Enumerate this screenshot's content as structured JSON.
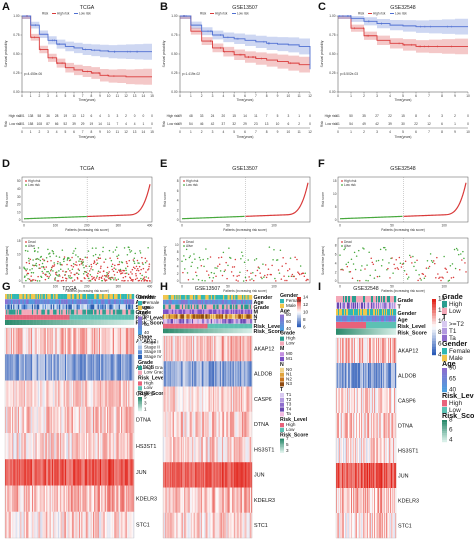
{
  "panel_letters": [
    "A",
    "B",
    "C",
    "D",
    "E",
    "F",
    "G",
    "H",
    "I"
  ],
  "colors": {
    "high": "#d93a3a",
    "low": "#4f6fd1",
    "alive": "#47a83d",
    "dead": "#d93a3a",
    "hm_hi": "#e2231a",
    "hm_mid": "#ffffff",
    "hm_lo": "#2b5bb8"
  },
  "km_legend": {
    "title": "Risk",
    "high": "High risk",
    "low": "Low risk"
  },
  "km_ylabel": "Survival probability",
  "km_xlabel": "Time(years)",
  "risk_table_label": "Risk",
  "rs_legend": {
    "high": "High risk",
    "low": "Low risk"
  },
  "st_legend": {
    "dead": "Dead",
    "alive": "Alive"
  },
  "rs_xlabel": "Patients (increasing risk score)",
  "panels_km": [
    {
      "title": "TCGA",
      "pvalue": "p=4.450e-06",
      "xticks": [
        "0",
        "1",
        "2",
        "3",
        "4",
        "5",
        "6",
        "7",
        "8",
        "9",
        "10",
        "11",
        "12",
        "13",
        "14",
        "15"
      ],
      "high": [
        "201",
        "138",
        "58",
        "36",
        "28",
        "19",
        "13",
        "12",
        "6",
        "4",
        "3",
        "3",
        "2",
        "0",
        "0",
        "0"
      ],
      "low": [
        "201",
        "158",
        "108",
        "87",
        "66",
        "52",
        "39",
        "29",
        "19",
        "14",
        "11",
        "7",
        "4",
        "4",
        "1",
        "0"
      ],
      "chart_data": {
        "type": "line",
        "x": [
          0,
          1,
          2,
          3,
          4,
          5,
          6,
          7,
          8,
          9,
          10,
          11,
          12,
          13,
          14,
          15
        ],
        "series": [
          {
            "name": "High risk",
            "values": [
              1.0,
              0.72,
              0.56,
              0.45,
              0.38,
              0.32,
              0.29,
              0.27,
              0.25,
              0.22,
              0.21,
              0.21,
              0.2,
              0.2,
              0.2,
              0.2
            ]
          },
          {
            "name": "Low risk",
            "values": [
              1.0,
              0.88,
              0.76,
              0.68,
              0.63,
              0.6,
              0.58,
              0.56,
              0.55,
              0.54,
              0.53,
              0.53,
              0.53,
              0.53,
              0.53,
              0.53
            ]
          }
        ],
        "ylim": [
          0,
          1
        ],
        "xlim": [
          0,
          15
        ]
      }
    },
    {
      "title": "GSE13507",
      "pvalue": "p=1.419e-02",
      "xticks": [
        "0",
        "1",
        "2",
        "3",
        "4",
        "5",
        "6",
        "7",
        "8",
        "9",
        "10",
        "11",
        "12"
      ],
      "high": [
        "69",
        "48",
        "33",
        "24",
        "20",
        "15",
        "14",
        "11",
        "7",
        "5",
        "3",
        "1",
        "0"
      ],
      "low": [
        "69",
        "54",
        "46",
        "42",
        "37",
        "32",
        "29",
        "23",
        "13",
        "10",
        "6",
        "2",
        "0"
      ],
      "chart_data": {
        "type": "line",
        "x": [
          0,
          1,
          2,
          3,
          4,
          5,
          6,
          7,
          8,
          9,
          10,
          11,
          12
        ],
        "series": [
          {
            "name": "High risk",
            "values": [
              1.0,
              0.8,
              0.67,
              0.58,
              0.53,
              0.49,
              0.46,
              0.44,
              0.42,
              0.4,
              0.38,
              0.36,
              0.36
            ]
          },
          {
            "name": "Low risk",
            "values": [
              1.0,
              0.88,
              0.8,
              0.75,
              0.72,
              0.7,
              0.68,
              0.66,
              0.64,
              0.63,
              0.62,
              0.6,
              0.3
            ]
          }
        ],
        "ylim": [
          0,
          1
        ],
        "xlim": [
          0,
          12
        ]
      }
    },
    {
      "title": "GSE32548",
      "pvalue": "p=5.502e-03",
      "xticks": [
        "0",
        "1",
        "2",
        "3",
        "4",
        "5",
        "6",
        "7",
        "8",
        "9",
        "10"
      ],
      "high": [
        "61",
        "50",
        "35",
        "27",
        "22",
        "15",
        "8",
        "4",
        "3",
        "2",
        "0"
      ],
      "low": [
        "61",
        "54",
        "49",
        "42",
        "39",
        "30",
        "22",
        "12",
        "6",
        "1",
        "0"
      ],
      "chart_data": {
        "type": "line",
        "x": [
          0,
          1,
          2,
          3,
          4,
          5,
          6,
          7,
          8,
          9,
          10
        ],
        "series": [
          {
            "name": "High risk",
            "values": [
              1.0,
              0.84,
              0.74,
              0.68,
              0.64,
              0.62,
              0.6,
              0.6,
              0.6,
              0.6,
              0.6
            ]
          },
          {
            "name": "Low risk",
            "values": [
              1.0,
              0.97,
              0.93,
              0.9,
              0.88,
              0.87,
              0.86,
              0.86,
              0.86,
              0.86,
              0.86
            ]
          }
        ],
        "ylim": [
          0,
          1
        ],
        "xlim": [
          0,
          10
        ]
      }
    }
  ],
  "panels_rs": [
    {
      "title": "TCGA",
      "ylabel": "Risk score",
      "yticks": [
        "0",
        "10",
        "20",
        "30",
        "40",
        "50"
      ],
      "xticks": [
        "0",
        "100",
        "200",
        "300",
        "400"
      ],
      "n": 402,
      "ymax": 50,
      "curve_max": 48,
      "st_ylabel": "Survival time (years)",
      "st_yticks": [
        "0",
        "5",
        "10",
        "15"
      ],
      "st_ymax": 15
    },
    {
      "title": "GSE13507",
      "ylabel": "Risk score",
      "yticks": [
        "0",
        "2",
        "4",
        "6",
        "8"
      ],
      "xticks": [
        "0",
        "50",
        "100"
      ],
      "n": 138,
      "ymax": 8,
      "curve_max": 8,
      "st_ylabel": "Survival time (years)",
      "st_yticks": [
        "0",
        "2",
        "4",
        "6",
        "8",
        "10"
      ],
      "st_ymax": 11
    },
    {
      "title": "GSE32548",
      "ylabel": "Risk score",
      "yticks": [
        "0",
        "5",
        "10",
        "15"
      ],
      "xticks": [
        "0",
        "50",
        "100"
      ],
      "n": 122,
      "ymax": 15,
      "curve_max": 15,
      "st_ylabel": "Survival time (years)",
      "st_yticks": [
        "0",
        "2",
        "4",
        "6",
        "8"
      ],
      "st_ymax": 9
    }
  ],
  "heatmap_titles": [
    "TCGA",
    "GSE13507",
    "GSE32548"
  ],
  "heatmap_genes": [
    [
      "AKAP12",
      "ALDOB",
      "CASP6",
      "DTNA",
      "HS3ST1",
      "JUN",
      "KDELR3",
      "STC1"
    ],
    [
      "AKAP12",
      "ALDOB",
      "CASP6",
      "DTNA",
      "HS3ST1",
      "JUN",
      "KDELR3",
      "STC1"
    ],
    [
      "AKAP12",
      "ALDOB",
      "CASP6",
      "DTNA",
      "HS3ST1",
      "JUN",
      "KDELR3",
      "STC1"
    ]
  ],
  "heatmap_annot": [
    [
      "Gender",
      "Age",
      "Stage",
      "Grade",
      "Risk_Level",
      "Risk_Score"
    ],
    [
      "Gender",
      "Age",
      "Grade",
      "M",
      "N",
      "T",
      "Risk_Level",
      "Risk_Score"
    ],
    [
      "Grade",
      "T",
      "Gender",
      "Age",
      "Risk_Level",
      "Risk_Score"
    ]
  ],
  "heatmap_G_legends": {
    "gender": {
      "title": "Gender",
      "items": [
        "Female",
        "Male"
      ]
    },
    "age": {
      "title": "Age",
      "ticks": [
        "80",
        "60",
        "40"
      ]
    },
    "stage": {
      "title": "Stage",
      "items": [
        "Stage I",
        "Stage II",
        "Stage III",
        "Stage IV"
      ]
    },
    "grade": {
      "title": "Grade",
      "items": [
        "High Grade",
        "Low Grade"
      ]
    },
    "risk": {
      "title": "Risk_Level",
      "items": [
        "High",
        "Low"
      ]
    },
    "score": {
      "title": "Risk_Score",
      "ticks": [
        "5",
        "3",
        "1"
      ]
    }
  },
  "heatmap_H_legends": {
    "scale": [
      "14",
      "12",
      "10",
      "8",
      "6"
    ],
    "gender": {
      "title": "Gender",
      "items": [
        "Female",
        "Male"
      ]
    },
    "age": {
      "title": "Age",
      "ticks": [
        "80",
        "60",
        "40"
      ]
    },
    "grade": {
      "title": "Grade",
      "items": [
        "High",
        "Low"
      ]
    },
    "m": {
      "title": "M",
      "items": [
        "M0",
        "M1"
      ]
    },
    "n": {
      "title": "N",
      "items": [
        "N0",
        "N1",
        "N2",
        "N3"
      ]
    },
    "t": {
      "title": "T",
      "items": [
        "T1",
        "T2",
        "T3",
        "T4",
        "Ta"
      ]
    },
    "risk": {
      "title": "Risk_Level",
      "items": [
        "High",
        "Low"
      ]
    },
    "score": {
      "title": "Risk_Score",
      "ticks": [
        "7",
        "5",
        "3"
      ]
    }
  },
  "heatmap_I_legends": {
    "scale": [
      "14",
      "12",
      "10",
      "8",
      "6",
      "4"
    ],
    "grade": {
      "title": "Grade",
      "items": [
        "High",
        "Low"
      ]
    },
    "t": {
      "title": "T",
      "items": [
        ">=T2",
        "T1",
        "Ta"
      ]
    },
    "gender": {
      "title": "Gender",
      "items": [
        "Female",
        "Male"
      ]
    },
    "age": {
      "title": "Age",
      "ticks": [
        "90",
        "65",
        "40"
      ]
    },
    "risk": {
      "title": "Risk_Level",
      "items": [
        "High",
        "Low"
      ]
    },
    "score": {
      "title": "Risk_Score",
      "ticks": [
        "8",
        "6",
        "4"
      ]
    }
  }
}
